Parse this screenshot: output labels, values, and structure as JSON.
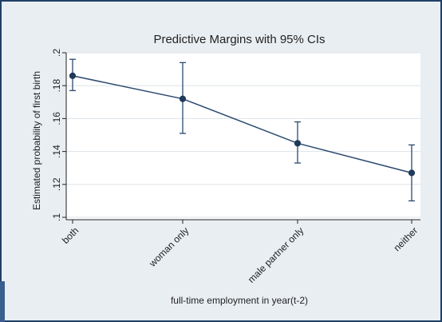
{
  "chart_data": {
    "type": "line",
    "title": "Predictive Margins with 95% CIs",
    "xlabel": "full-time employment in year(t-2)",
    "ylabel": "Estimated probability of first birth",
    "categories": [
      "both",
      "woman only",
      "male partner only",
      "neither"
    ],
    "series": [
      {
        "values": [
          0.186,
          0.172,
          0.145,
          0.127
        ],
        "ci_lower": [
          0.177,
          0.151,
          0.133,
          0.11
        ],
        "ci_upper": [
          0.196,
          0.194,
          0.158,
          0.144
        ]
      }
    ],
    "ylim": [
      0.1,
      0.2
    ],
    "yticks": [
      ".1",
      ".12",
      ".14",
      ".16",
      ".18",
      ".2"
    ],
    "ytick_values": [
      0.1,
      0.12,
      0.14,
      0.16,
      0.18,
      0.2
    ],
    "grid": true,
    "colors": {
      "line": "#2b4a6f",
      "marker": "#1f3a5a",
      "grid": "#dde3e8",
      "plot_bg": "#ffffff",
      "outer_bg": "#e9eef2",
      "frame": "#1f3f66"
    }
  }
}
